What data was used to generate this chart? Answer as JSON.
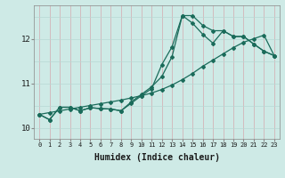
{
  "xlabel": "Humidex (Indice chaleur)",
  "bg_color": "#ceeae6",
  "line_color": "#1a6b5a",
  "grid_color_v": "#d4a8ae",
  "grid_color_h": "#b8d8d4",
  "xlim": [
    -0.5,
    23.5
  ],
  "ylim": [
    9.75,
    12.75
  ],
  "yticks": [
    10,
    11,
    12
  ],
  "xticks": [
    0,
    1,
    2,
    3,
    4,
    5,
    6,
    7,
    8,
    9,
    10,
    11,
    12,
    13,
    14,
    15,
    16,
    17,
    18,
    19,
    20,
    21,
    22,
    23
  ],
  "series1_x": [
    0,
    1,
    2,
    3,
    4,
    5,
    6,
    7,
    8,
    9,
    10,
    11,
    12,
    13,
    14,
    15,
    16,
    17,
    18,
    19,
    20,
    21,
    22,
    23
  ],
  "series1_y": [
    10.3,
    10.18,
    10.46,
    10.46,
    10.38,
    10.45,
    10.43,
    10.42,
    10.38,
    10.55,
    10.72,
    10.88,
    11.42,
    11.82,
    12.52,
    12.52,
    12.3,
    12.18,
    12.18,
    12.05,
    12.05,
    11.88,
    11.72,
    11.62
  ],
  "series2_x": [
    0,
    1,
    2,
    3,
    4,
    5,
    6,
    7,
    8,
    9,
    10,
    11,
    12,
    13,
    14,
    15,
    16,
    17,
    18,
    19,
    20,
    21,
    22,
    23
  ],
  "series2_y": [
    10.3,
    10.18,
    10.46,
    10.46,
    10.38,
    10.45,
    10.43,
    10.42,
    10.38,
    10.58,
    10.75,
    10.92,
    11.15,
    11.6,
    12.52,
    12.35,
    12.1,
    11.9,
    12.18,
    12.05,
    12.05,
    11.88,
    11.72,
    11.62
  ],
  "series3_x": [
    0,
    1,
    2,
    3,
    4,
    5,
    6,
    7,
    8,
    9,
    10,
    11,
    12,
    13,
    14,
    15,
    16,
    17,
    18,
    19,
    20,
    21,
    22,
    23
  ],
  "series3_y": [
    10.3,
    10.34,
    10.38,
    10.42,
    10.46,
    10.5,
    10.54,
    10.58,
    10.62,
    10.67,
    10.72,
    10.78,
    10.86,
    10.96,
    11.08,
    11.22,
    11.38,
    11.52,
    11.66,
    11.8,
    11.92,
    12.0,
    12.08,
    11.62
  ]
}
